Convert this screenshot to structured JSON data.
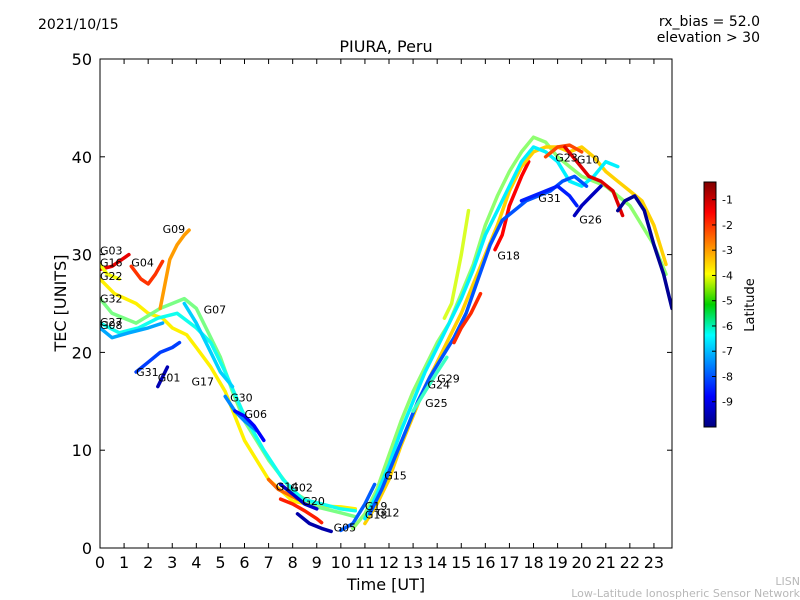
{
  "header": {
    "date": "2021/10/15",
    "rx_bias": "rx_bias = 52.0",
    "elevation": "elevation > 30"
  },
  "footer": {
    "line1": "LISN",
    "line2": "Low-Latitude Ionospheric Sensor Network"
  },
  "colorbar": {
    "label": "Latitude",
    "min": -10,
    "max": -0.3,
    "ticks": [
      "-1",
      "-2",
      "-3",
      "-4",
      "-5",
      "-6",
      "-7",
      "-8",
      "-9"
    ]
  },
  "chart_data": {
    "type": "scatter",
    "title": "PIURA, Peru",
    "xlabel": "Time [UT]",
    "ylabel": "TEC [UNITS]",
    "xlim": [
      0,
      23.75
    ],
    "ylim": [
      0,
      50
    ],
    "xticks": [
      "0",
      "1",
      "2",
      "3",
      "4",
      "5",
      "6",
      "7",
      "8",
      "9",
      "10",
      "11",
      "12",
      "13",
      "14",
      "15",
      "16",
      "17",
      "18",
      "19",
      "20",
      "21",
      "22",
      "23"
    ],
    "yticks": [
      "0",
      "10",
      "20",
      "30",
      "40",
      "50"
    ],
    "series": [
      {
        "name": "G03",
        "lat": -1.3,
        "x": [
          0,
          0.5,
          1.2
        ],
        "y": [
          28.5,
          28.8,
          30.0
        ]
      },
      {
        "name": "G16",
        "lat": -4.0,
        "x": [
          0,
          0.3,
          0.8
        ],
        "y": [
          29.0,
          28.0,
          27.5
        ]
      },
      {
        "name": "G22",
        "lat": -3.8,
        "x": [
          0,
          0.6,
          1.5,
          2.0,
          2.6,
          3.0,
          3.6,
          4.0,
          4.6,
          5.2,
          6.0,
          7.0,
          8.0,
          9.0,
          10.0,
          10.6
        ],
        "y": [
          27.5,
          26.0,
          25.0,
          24.0,
          23.5,
          22.5,
          21.8,
          20.5,
          18.5,
          16.0,
          11.0,
          7.0,
          4.8,
          4.3,
          4.2,
          4.0
        ]
      },
      {
        "name": "G32",
        "lat": -5.2,
        "x": [
          0,
          0.5,
          1.5,
          2.5,
          3.0,
          3.5,
          4.0,
          4.5,
          5.0,
          5.5,
          6.0,
          7.0,
          8.0,
          9.0,
          10.0,
          10.6
        ],
        "y": [
          25.5,
          24.0,
          23.0,
          24.5,
          25.0,
          25.5,
          24.5,
          22.0,
          19.5,
          16.0,
          13.0,
          9.0,
          5.8,
          4.2,
          3.6,
          3.2
        ]
      },
      {
        "name": "G07",
        "lat": -6.2,
        "x": [
          0,
          0.8,
          1.6,
          2.4,
          3.2,
          4.0,
          4.6,
          5.2,
          6.0,
          6.8,
          7.6,
          8.4,
          9.2,
          10.0,
          10.6
        ],
        "y": [
          23.0,
          22.0,
          22.5,
          23.5,
          24.0,
          22.5,
          21.0,
          18.0,
          13.5,
          10.0,
          7.0,
          5.0,
          4.5,
          4.0,
          3.8
        ]
      },
      {
        "name": "G08",
        "lat": -7.2,
        "x": [
          0,
          0.5,
          1.2,
          2.0,
          2.6
        ],
        "y": [
          22.5,
          21.5,
          22.0,
          22.5,
          23.0
        ]
      },
      {
        "name": "G09",
        "lat": -3.0,
        "x": [
          2.5,
          2.7,
          2.9,
          3.2,
          3.5,
          3.7
        ],
        "y": [
          24.5,
          27.0,
          29.5,
          31.0,
          32.0,
          32.5
        ]
      },
      {
        "name": "G04",
        "lat": -2.0,
        "x": [
          1.3,
          1.7,
          2.0,
          2.3,
          2.6
        ],
        "y": [
          28.8,
          27.5,
          27.0,
          28.0,
          29.3
        ]
      },
      {
        "name": "G31",
        "lat": -8.2,
        "x": [
          1.5,
          2.0,
          2.5,
          3.0,
          3.3
        ],
        "y": [
          18.0,
          19.0,
          20.0,
          20.5,
          21.0
        ]
      },
      {
        "name": "G01",
        "lat": -9.5,
        "x": [
          2.4,
          2.6,
          2.8
        ],
        "y": [
          16.5,
          17.5,
          18.5
        ]
      },
      {
        "name": "G17",
        "lat": -6.8,
        "x": [
          3.5,
          4.0,
          4.5,
          5.0,
          5.5
        ],
        "y": [
          25.0,
          23.0,
          20.5,
          18.0,
          16.5
        ]
      },
      {
        "name": "G30",
        "lat": -7.5,
        "x": [
          5.2,
          5.6,
          6.0,
          6.5
        ],
        "y": [
          15.5,
          14.0,
          13.0,
          12.0
        ]
      },
      {
        "name": "G06",
        "lat": -8.8,
        "x": [
          5.6,
          6.0,
          6.4,
          6.8
        ],
        "y": [
          14.0,
          13.5,
          12.5,
          11.0
        ]
      },
      {
        "name": "G14",
        "lat": -2.5,
        "x": [
          7.0,
          7.4,
          7.8,
          8.2
        ],
        "y": [
          7.0,
          6.0,
          5.5,
          5.0
        ]
      },
      {
        "name": "G02",
        "lat": -9.3,
        "x": [
          7.5,
          8.0,
          8.5,
          9.0
        ],
        "y": [
          6.5,
          5.5,
          4.5,
          4.0
        ]
      },
      {
        "name": "G20",
        "lat": -1.8,
        "x": [
          7.5,
          8.0,
          8.5,
          9.0,
          9.2
        ],
        "y": [
          5.0,
          4.5,
          3.8,
          3.0,
          2.6
        ]
      },
      {
        "name": "G05",
        "lat": -9.6,
        "x": [
          8.2,
          8.7,
          9.2,
          9.6
        ],
        "y": [
          3.5,
          2.5,
          2.0,
          1.7
        ]
      },
      {
        "name": "G19",
        "lat": -7.9,
        "x": [
          10.0,
          10.5,
          11.0,
          11.4
        ],
        "y": [
          1.8,
          2.5,
          4.5,
          6.5
        ]
      },
      {
        "name": "G18",
        "lat": -1.5,
        "x": [
          16.4,
          16.7,
          17.0,
          17.5,
          17.8
        ],
        "y": [
          30.5,
          32.0,
          35.0,
          38.0,
          39.5
        ]
      },
      {
        "name": "G15",
        "lat": -5.0,
        "x": [
          10.5,
          11.0,
          11.5,
          12.0,
          12.5,
          13.0,
          13.5,
          14.0,
          14.5,
          15.0,
          15.5,
          16.0,
          16.5,
          17.0,
          17.5,
          18.0,
          18.5,
          19.0,
          19.5,
          20.0,
          20.5,
          21.0,
          21.5,
          22.0,
          22.5,
          23.0,
          23.5
        ],
        "y": [
          2.0,
          3.5,
          6.0,
          9.5,
          13.0,
          16.0,
          18.5,
          21.0,
          23.0,
          26.0,
          29.0,
          33.0,
          36.0,
          38.5,
          40.5,
          42.0,
          41.5,
          40.0,
          39.0,
          38.0,
          37.5,
          37.0,
          36.0,
          35.0,
          33.0,
          31.0,
          28.0
        ]
      },
      {
        "name": "G12",
        "lat": -3.5,
        "x": [
          11.0,
          11.5,
          12.0,
          12.5,
          13.0,
          13.5,
          14.0,
          14.5,
          15.0,
          15.5,
          16.0,
          16.5,
          17.0,
          17.5,
          18.0,
          18.5,
          19.0,
          19.5,
          20.0,
          20.5,
          21.0,
          21.5,
          22.0,
          22.5,
          23.0,
          23.5
        ],
        "y": [
          2.5,
          4.5,
          7.0,
          10.5,
          13.5,
          16.5,
          19.0,
          21.5,
          24.0,
          27.0,
          30.0,
          33.0,
          36.5,
          39.0,
          40.5,
          41.0,
          41.0,
          40.5,
          41.0,
          40.0,
          38.5,
          37.5,
          36.5,
          35.5,
          33.0,
          29.0
        ]
      },
      {
        "name": "G29",
        "lat": -6.5,
        "x": [
          11.0,
          11.5,
          12.0,
          12.5,
          13.0,
          13.5,
          14.0,
          14.5,
          15.0,
          15.5,
          16.0,
          16.5,
          17.0,
          17.5,
          18.0,
          18.5,
          19.0,
          19.5,
          20.0,
          20.5,
          21.0,
          21.5
        ],
        "y": [
          3.0,
          5.5,
          8.5,
          12.0,
          15.0,
          18.0,
          20.5,
          23.0,
          25.5,
          28.5,
          32.0,
          34.5,
          37.0,
          39.5,
          41.0,
          40.5,
          39.5,
          37.5,
          37.0,
          38.0,
          39.5,
          39.0
        ]
      },
      {
        "name": "G24",
        "lat": -8.0,
        "x": [
          11.2,
          11.7,
          12.2,
          12.7,
          13.2,
          13.7,
          14.2,
          14.7,
          15.2,
          15.7,
          16.2,
          16.7,
          17.2,
          17.7,
          18.2,
          18.7,
          19.2,
          19.7,
          20.2
        ],
        "y": [
          3.5,
          6.0,
          9.0,
          12.0,
          15.0,
          17.5,
          19.5,
          21.5,
          24.0,
          27.5,
          31.0,
          33.5,
          34.5,
          35.5,
          36.0,
          36.5,
          37.5,
          38.0,
          37.0
        ]
      },
      {
        "name": "G25",
        "lat": -5.8,
        "x": [
          13.0,
          13.5,
          14.0,
          14.4
        ],
        "y": [
          14.0,
          16.0,
          18.0,
          19.5
        ]
      },
      {
        "name": "G23",
        "lat": -2.2,
        "x": [
          18.5,
          19.0,
          19.5,
          20.0
        ],
        "y": [
          40.0,
          41.0,
          41.2,
          40.5
        ]
      },
      {
        "name": "G10",
        "lat": -1.2,
        "x": [
          19.3,
          19.8,
          20.3,
          20.8,
          21.3,
          21.7
        ],
        "y": [
          41.0,
          39.5,
          38.0,
          37.5,
          36.5,
          34.0
        ]
      },
      {
        "name": "G31",
        "lat": -8.5,
        "x": [
          17.5,
          18.0,
          18.5,
          19.0,
          19.5,
          19.8
        ],
        "y": [
          35.5,
          36.0,
          36.5,
          37.0,
          36.0,
          35.0
        ]
      },
      {
        "name": "G26",
        "lat": -9.4,
        "x": [
          19.7,
          20.0,
          20.4,
          20.8
        ],
        "y": [
          34.0,
          35.0,
          36.0,
          37.0
        ]
      },
      {
        "name": "",
        "lat": -4.3,
        "x": [
          14.3,
          14.6,
          15.0,
          15.3
        ],
        "y": [
          23.5,
          25.0,
          30.0,
          34.5
        ]
      },
      {
        "name": "",
        "lat": -1.9,
        "x": [
          14.7,
          15.0,
          15.4,
          15.8
        ],
        "y": [
          21.0,
          22.5,
          24.0,
          26.0
        ]
      },
      {
        "name": "",
        "lat": -9.8,
        "x": [
          21.5,
          21.8,
          22.2,
          22.6,
          23.0,
          23.4,
          23.75
        ],
        "y": [
          34.5,
          35.5,
          36.0,
          34.5,
          31.0,
          28.0,
          24.5
        ]
      }
    ],
    "labels": [
      {
        "text": "G03",
        "x": 0.0,
        "y": 30.0
      },
      {
        "text": "G16",
        "x": 0.0,
        "y": 28.8
      },
      {
        "text": "G04",
        "x": 1.3,
        "y": 28.8
      },
      {
        "text": "G09",
        "x": 2.6,
        "y": 32.2
      },
      {
        "text": "G22",
        "x": 0.0,
        "y": 27.4
      },
      {
        "text": "G32",
        "x": 0.0,
        "y": 25.1
      },
      {
        "text": "G07",
        "x": 4.3,
        "y": 24.0
      },
      {
        "text": "G27",
        "x": 0.0,
        "y": 22.7
      },
      {
        "text": "G08",
        "x": 0.0,
        "y": 22.4
      },
      {
        "text": "G31",
        "x": 1.5,
        "y": 17.6
      },
      {
        "text": "G01",
        "x": 2.4,
        "y": 17.0
      },
      {
        "text": "G17",
        "x": 3.8,
        "y": 16.6
      },
      {
        "text": "G30",
        "x": 5.4,
        "y": 15.0
      },
      {
        "text": "G06",
        "x": 6.0,
        "y": 13.3
      },
      {
        "text": "G14",
        "x": 7.3,
        "y": 5.9
      },
      {
        "text": "G02",
        "x": 7.9,
        "y": 5.8
      },
      {
        "text": "G20",
        "x": 8.4,
        "y": 4.4
      },
      {
        "text": "G05",
        "x": 9.7,
        "y": 1.7
      },
      {
        "text": "G19",
        "x": 11.0,
        "y": 3.9
      },
      {
        "text": "G18",
        "x": 11.0,
        "y": 3.0
      },
      {
        "text": "G12",
        "x": 11.5,
        "y": 3.2
      },
      {
        "text": "G15",
        "x": 11.8,
        "y": 7.0
      },
      {
        "text": "G29",
        "x": 14.0,
        "y": 16.9
      },
      {
        "text": "G24",
        "x": 13.6,
        "y": 16.3
      },
      {
        "text": "G25",
        "x": 13.5,
        "y": 14.4
      },
      {
        "text": "G18",
        "x": 16.5,
        "y": 29.5
      },
      {
        "text": "G31",
        "x": 18.2,
        "y": 35.4
      },
      {
        "text": "G23",
        "x": 18.9,
        "y": 39.5
      },
      {
        "text": "G10",
        "x": 19.8,
        "y": 39.3
      },
      {
        "text": "G26",
        "x": 19.9,
        "y": 33.2
      }
    ]
  }
}
